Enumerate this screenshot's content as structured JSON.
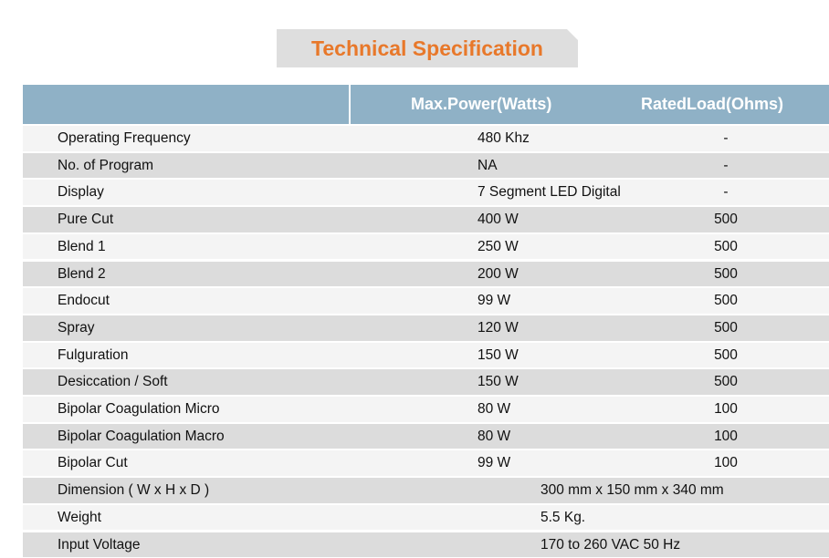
{
  "title": "Technical Specification",
  "table": {
    "columns": [
      "Max.Power(Watts)",
      "RatedLoad(Ohms)"
    ],
    "rows": [
      [
        "Operating Frequency",
        "480 Khz",
        "-"
      ],
      [
        "No. of Program",
        "NA",
        "-"
      ],
      [
        "Display",
        "7 Segment LED Digital",
        "-"
      ],
      [
        "Pure Cut",
        "400 W",
        "500"
      ],
      [
        "Blend 1",
        "250 W",
        "500"
      ],
      [
        "Blend 2",
        "200 W",
        "500"
      ],
      [
        "Endocut",
        "99 W",
        "500"
      ],
      [
        "Spray",
        "120 W",
        "500"
      ],
      [
        "Fulguration",
        "150 W",
        "500"
      ],
      [
        "Desiccation / Soft",
        "150 W",
        "500"
      ],
      [
        "Bipolar Coagulation Micro",
        "80 W",
        "100"
      ],
      [
        "Bipolar Coagulation Macro",
        "80 W",
        "100"
      ],
      [
        "Bipolar Cut",
        "99 W",
        "100"
      ],
      [
        "Dimension ( W x H x D )",
        "300 mm x 150 mm x 340 mm"
      ],
      [
        "Weight",
        "5.5 Kg."
      ],
      [
        "Input Voltage",
        "170 to 260 VAC 50 Hz"
      ]
    ]
  }
}
